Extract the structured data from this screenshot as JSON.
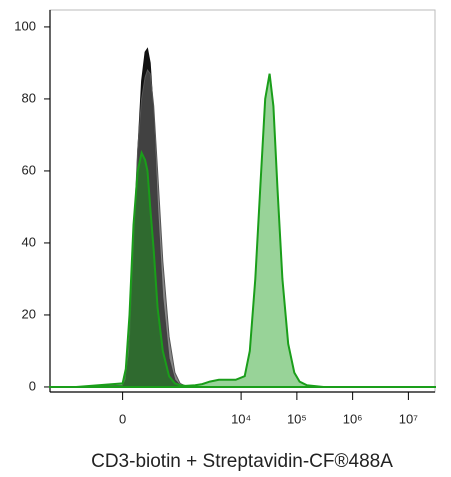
{
  "chart_data": {
    "type": "histogram_overlay",
    "x_label": "CD3-biotin + Streptavidin-CF®488A",
    "x_scale": "asinh",
    "x": [
      -1500,
      -500,
      0,
      20,
      43,
      70,
      100,
      130,
      160,
      183,
      210,
      250,
      300,
      380,
      500,
      640,
      800,
      1000,
      1500,
      2000,
      2740,
      4000,
      6000,
      8000,
      11600,
      14300,
      18000,
      22000,
      27000,
      32500,
      38000,
      45000,
      55000,
      70000,
      90000,
      112000,
      150000,
      300000,
      1000000,
      10000000,
      30000000
    ],
    "series": [
      {
        "color": "#111111",
        "values": [
          0,
          0,
          0,
          2,
          10,
          35,
          65,
          85,
          93,
          94,
          90,
          75,
          50,
          25,
          8,
          2,
          0.5,
          0,
          0,
          0,
          0,
          0,
          0,
          0,
          0,
          0,
          0,
          0,
          0,
          0,
          0,
          0,
          0,
          0,
          0,
          0,
          0,
          0,
          0,
          0,
          0
        ]
      },
      {
        "color": "#555555",
        "values": [
          0,
          0,
          0.5,
          4,
          14,
          40,
          66,
          80,
          86,
          88,
          87,
          78,
          60,
          35,
          14,
          4,
          1,
          0.3,
          0,
          0,
          0,
          0,
          0,
          0,
          0,
          0,
          0,
          0,
          0,
          0,
          0,
          0,
          0,
          0,
          0,
          0,
          0,
          0,
          0,
          0,
          0
        ]
      },
      {
        "color": "#1a9e1a",
        "values": [
          0,
          0,
          1,
          5,
          20,
          45,
          60,
          65,
          63,
          60,
          50,
          38,
          22,
          10,
          3,
          1,
          0.5,
          0.3,
          0.5,
          0.8,
          1.5,
          2,
          2,
          2,
          3,
          10,
          30,
          55,
          80,
          87,
          78,
          55,
          30,
          12,
          4,
          1.5,
          0.5,
          0,
          0,
          0,
          0
        ]
      }
    ],
    "xlim": [
      -1500,
      30000000
    ],
    "ylim": [
      -1.4,
      104.7
    ],
    "xticks": [
      0,
      {
        "value": 10000,
        "label": "10⁴"
      },
      {
        "value": 100000,
        "label": "10⁵"
      },
      {
        "value": 1000000,
        "label": "10⁶"
      },
      {
        "value": 10000000,
        "label": "10⁷"
      }
    ],
    "yticks": [
      0,
      20,
      40,
      60,
      80,
      100
    ]
  }
}
